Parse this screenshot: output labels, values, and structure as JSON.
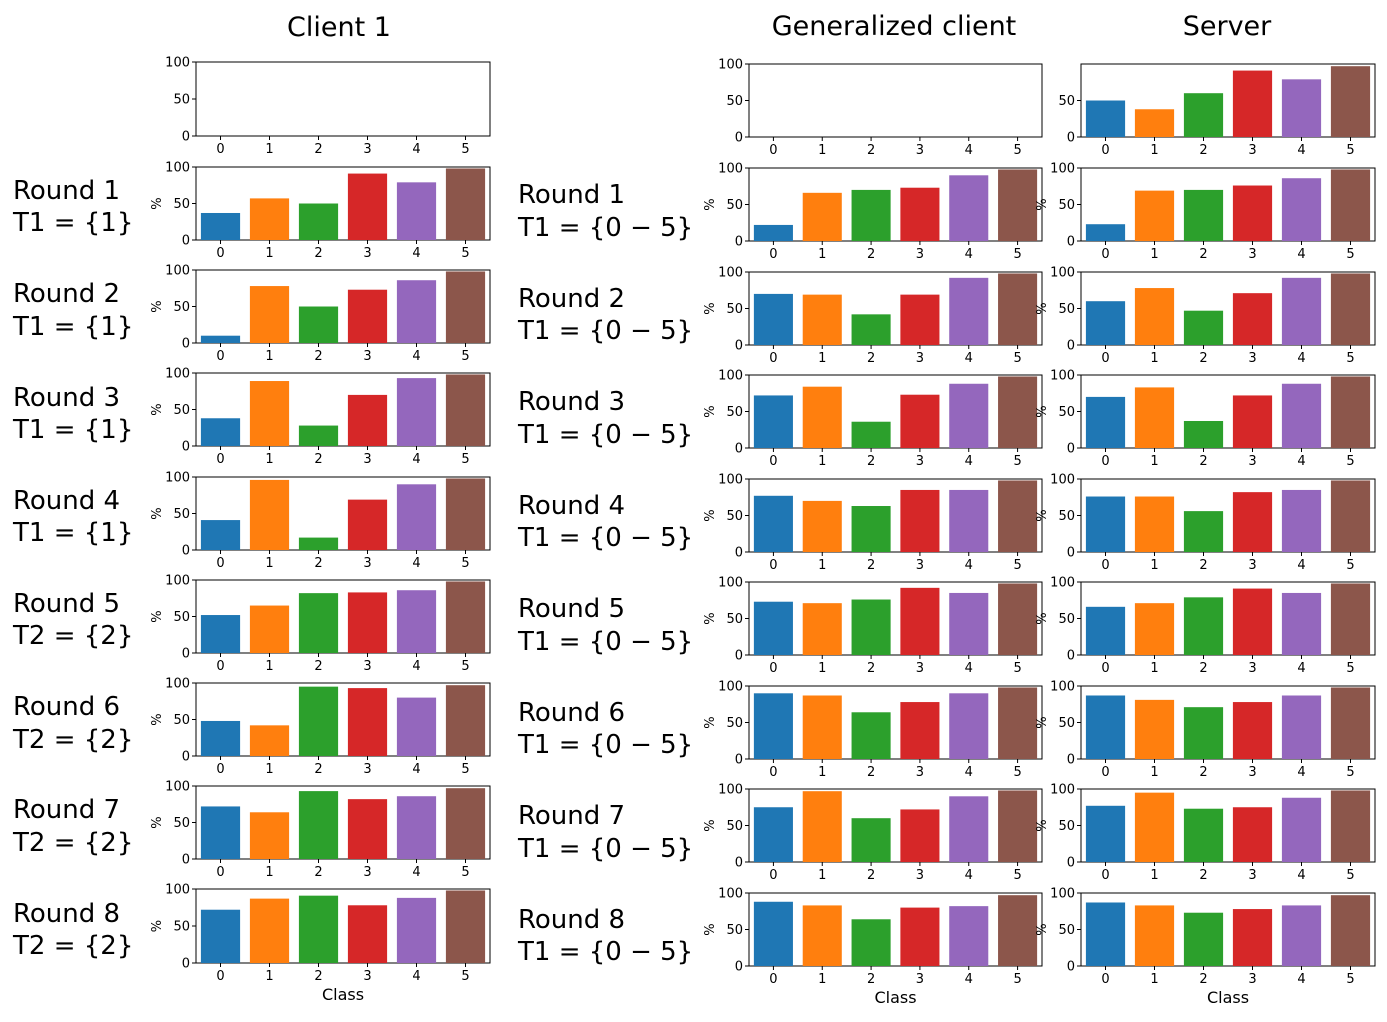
{
  "columns": [
    {
      "title": "Client 1",
      "row_prefix": "Round",
      "axis_label": "%",
      "x_label": "Class"
    },
    {
      "title": "Generalized client",
      "row_prefix": "Round",
      "axis_label": "%",
      "x_label": "Class"
    },
    {
      "title": "Server",
      "axis_label": "%",
      "x_label": "Class"
    }
  ],
  "row_labels": {
    "client1": [
      [
        "Round 1",
        "T1 = {1}"
      ],
      [
        "Round 2",
        "T1 = {1}"
      ],
      [
        "Round 3",
        "T1 = {1}"
      ],
      [
        "Round 4",
        "T1 = {1}"
      ],
      [
        "Round 5",
        "T2 = {2}"
      ],
      [
        "Round 6",
        "T2 = {2}"
      ],
      [
        "Round 7",
        "T2 = {2}"
      ],
      [
        "Round 8",
        "T2 = {2}"
      ]
    ],
    "generalized": [
      [
        "Round 1",
        "T1 = {0 − 5}"
      ],
      [
        "Round 2",
        "T1 = {0 − 5}"
      ],
      [
        "Round 3",
        "T1 = {0 − 5}"
      ],
      [
        "Round 4",
        "T1 = {0 − 5}"
      ],
      [
        "Round 5",
        "T1 = {0 − 5}"
      ],
      [
        "Round 6",
        "T1 = {0 − 5}"
      ],
      [
        "Round 7",
        "T1 = {0 − 5}"
      ],
      [
        "Round 8",
        "T1 = {0 − 5}"
      ]
    ]
  },
  "chart_data": {
    "type": "bar",
    "categories": [
      "0",
      "1",
      "2",
      "3",
      "4",
      "5"
    ],
    "colors": [
      "#1f77b4",
      "#ff7f0e",
      "#2ca02c",
      "#d62728",
      "#9467bd",
      "#8c564b"
    ],
    "ylim": [
      0,
      100
    ],
    "yticks": [
      0,
      50,
      100
    ],
    "xlabel": "Class",
    "ylabel": "%",
    "panels": {
      "client1": [
        null,
        [
          37,
          57,
          50,
          91,
          79,
          98
        ],
        [
          10,
          78,
          50,
          73,
          86,
          98
        ],
        [
          38,
          89,
          28,
          70,
          93,
          98
        ],
        [
          41,
          96,
          17,
          69,
          90,
          98
        ],
        [
          52,
          65,
          82,
          83,
          86,
          98
        ],
        [
          48,
          42,
          95,
          93,
          80,
          97
        ],
        [
          72,
          64,
          93,
          82,
          86,
          97
        ],
        [
          72,
          87,
          91,
          78,
          88,
          98
        ]
      ],
      "generalized": [
        null,
        [
          22,
          66,
          70,
          73,
          90,
          98
        ],
        [
          70,
          69,
          42,
          69,
          92,
          98
        ],
        [
          72,
          84,
          36,
          73,
          88,
          98
        ],
        [
          77,
          70,
          63,
          85,
          85,
          98
        ],
        [
          73,
          71,
          76,
          92,
          85,
          98
        ],
        [
          90,
          87,
          64,
          78,
          90,
          98
        ],
        [
          75,
          97,
          60,
          72,
          90,
          98
        ],
        [
          88,
          83,
          64,
          80,
          82,
          97
        ]
      ],
      "server": [
        [
          50,
          38,
          60,
          91,
          79,
          97
        ],
        [
          23,
          69,
          70,
          76,
          86,
          98
        ],
        [
          60,
          78,
          47,
          71,
          92,
          98
        ],
        [
          70,
          83,
          37,
          72,
          88,
          98
        ],
        [
          76,
          76,
          56,
          82,
          85,
          98
        ],
        [
          66,
          71,
          79,
          91,
          85,
          98
        ],
        [
          87,
          81,
          71,
          78,
          87,
          98
        ],
        [
          77,
          95,
          73,
          75,
          88,
          98
        ],
        [
          87,
          83,
          73,
          78,
          83,
          97
        ]
      ]
    }
  }
}
